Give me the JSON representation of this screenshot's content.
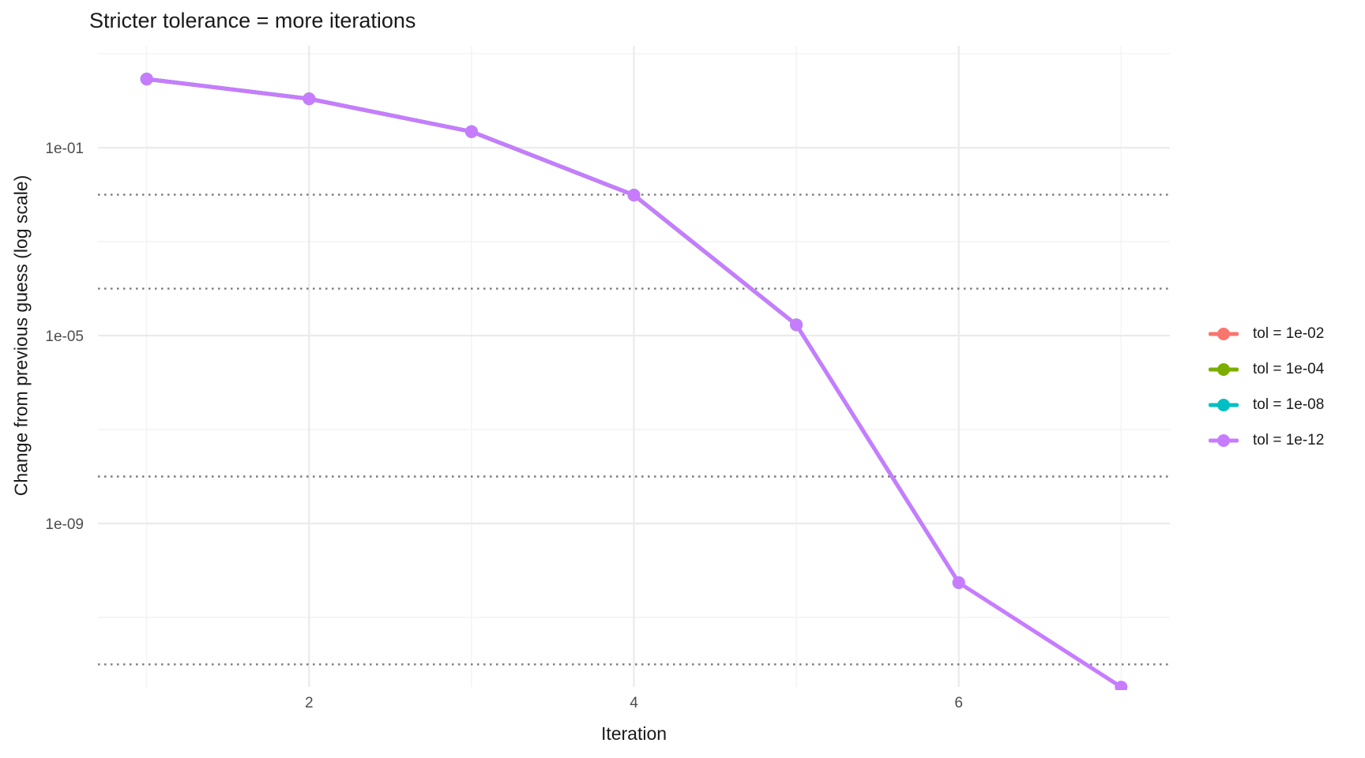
{
  "title": "Stricter tolerance = more iterations",
  "axes": {
    "x": {
      "label": "Iteration"
    },
    "y": {
      "label": "Change from previous guess (log scale)"
    }
  },
  "legend": {
    "position": "right",
    "items": [
      {
        "label": "tol = 1e-02",
        "color": "#F8766D"
      },
      {
        "label": "tol = 1e-04",
        "color": "#7CAE00"
      },
      {
        "label": "tol = 1e-08",
        "color": "#00BFC4"
      },
      {
        "label": "tol = 1e-12",
        "color": "#C77CFF"
      }
    ]
  },
  "colors": {
    "background": "#ffffff",
    "major_grid": "#ebebeb",
    "minor_grid": "#f4f4f4",
    "reference_line": "#7a7a7a",
    "tick_text": "#4d4d4d",
    "title_text": "#1a1a1a"
  },
  "chart_data": {
    "type": "line",
    "title": "Stricter tolerance = more iterations",
    "xlabel": "Iteration",
    "ylabel": "Change from previous guess (log scale)",
    "x_ticks": [
      2,
      4,
      6
    ],
    "x_minor_ticks": [
      1,
      3,
      5,
      7
    ],
    "xlim": [
      0.7,
      7.3
    ],
    "y_scale": "log10",
    "y_ticks": {
      "labels": [
        "1e-01",
        "1e-05",
        "1e-09"
      ],
      "values": [
        0.1,
        1e-05,
        1e-09
      ]
    },
    "y_minor_values": [
      10.0,
      0.001,
      1e-07,
      1e-11
    ],
    "ylim_log10": [
      1.17,
      -12.48
    ],
    "grid": true,
    "legend_position": "right",
    "reference_lines": {
      "linetype": "dotted",
      "values": [
        0.01,
        0.0001,
        1e-08,
        1e-12
      ]
    },
    "series": [
      {
        "name": "tol = 1e-02",
        "color": "#F8766D",
        "x": [
          1,
          2,
          3,
          4
        ],
        "y": [
          2.9,
          1.1,
          0.22,
          0.0098
        ]
      },
      {
        "name": "tol = 1e-04",
        "color": "#7CAE00",
        "x": [
          1,
          2,
          3,
          4,
          5
        ],
        "y": [
          2.9,
          1.1,
          0.22,
          0.0098,
          1.7e-05
        ]
      },
      {
        "name": "tol = 1e-08",
        "color": "#00BFC4",
        "x": [
          1,
          2,
          3,
          4,
          5,
          6
        ],
        "y": [
          2.9,
          1.1,
          0.22,
          0.0098,
          1.7e-05,
          5.5e-11
        ]
      },
      {
        "name": "tol = 1e-12",
        "color": "#C77CFF",
        "x": [
          1,
          2,
          3,
          4,
          5,
          6,
          7
        ],
        "y": [
          2.9,
          1.1,
          0.22,
          0.0098,
          1.7e-05,
          5.5e-11,
          3.3e-13
        ]
      }
    ],
    "note": "All four series trace identical change values; each stops once the change drops below its tolerance, so the tol = 1e-12 line (drawn last) overlaps and hides the shorter ones. Dotted horizontal lines mark the four tolerance levels."
  }
}
